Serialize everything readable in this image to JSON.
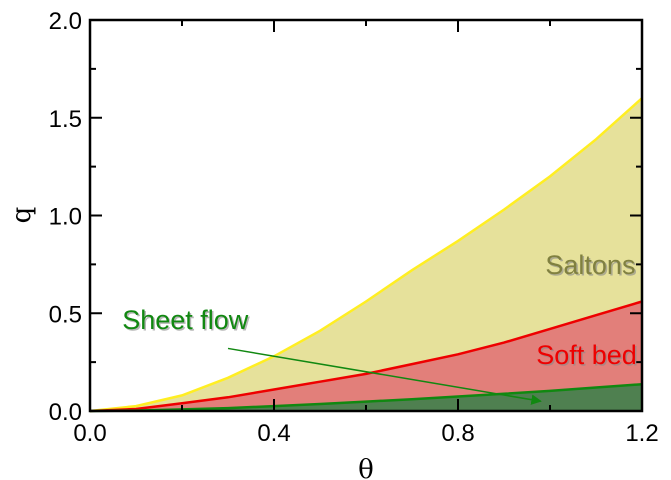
{
  "chart_data": {
    "type": "area",
    "xlabel": "θ",
    "ylabel": "q",
    "xlim": [
      0.0,
      1.2
    ],
    "ylim": [
      0.0,
      2.0
    ],
    "xticks": [
      "0.0",
      "0.4",
      "0.8",
      "1.2"
    ],
    "yticks": [
      "0.0",
      "0.5",
      "1.0",
      "1.5",
      "2.0"
    ],
    "grid": false,
    "legend": "none",
    "series": [
      {
        "name": "Saltons",
        "fill": "#e6e19b",
        "line": "#ffee22",
        "x": [
          0.0,
          0.1,
          0.2,
          0.3,
          0.4,
          0.5,
          0.6,
          0.7,
          0.8,
          0.9,
          1.0,
          1.1,
          1.2
        ],
        "y": [
          0.0,
          0.025,
          0.08,
          0.17,
          0.28,
          0.41,
          0.56,
          0.72,
          0.87,
          1.03,
          1.2,
          1.39,
          1.6
        ]
      },
      {
        "name": "Soft bed",
        "fill": "#e27f7a",
        "line": "#ee0000",
        "x": [
          0.0,
          0.1,
          0.2,
          0.3,
          0.4,
          0.5,
          0.6,
          0.7,
          0.8,
          0.9,
          1.0,
          1.1,
          1.2
        ],
        "y": [
          0.0,
          0.01,
          0.04,
          0.07,
          0.11,
          0.15,
          0.19,
          0.24,
          0.29,
          0.35,
          0.42,
          0.49,
          0.56
        ]
      },
      {
        "name": "Sheet flow",
        "fill": "#4f8050",
        "line": "#118811",
        "x": [
          0.0,
          0.1,
          0.2,
          0.3,
          0.4,
          0.5,
          0.6,
          0.7,
          0.8,
          0.9,
          1.0,
          1.1,
          1.2
        ],
        "y": [
          0.0,
          0.002,
          0.008,
          0.015,
          0.025,
          0.036,
          0.048,
          0.06,
          0.074,
          0.088,
          0.103,
          0.12,
          0.137
        ]
      }
    ],
    "annotations": [
      {
        "text": "Saltons",
        "x": 0.99,
        "y": 0.7,
        "color": "#808040"
      },
      {
        "text": "Soft bed",
        "x": 0.97,
        "y": 0.24,
        "color": "#ee0000"
      },
      {
        "text": "Sheet flow",
        "x": 0.07,
        "y": 0.42,
        "color": "#118811",
        "arrow_from": [
          0.3,
          0.32
        ],
        "arrow_to": [
          0.98,
          0.05
        ]
      }
    ]
  }
}
